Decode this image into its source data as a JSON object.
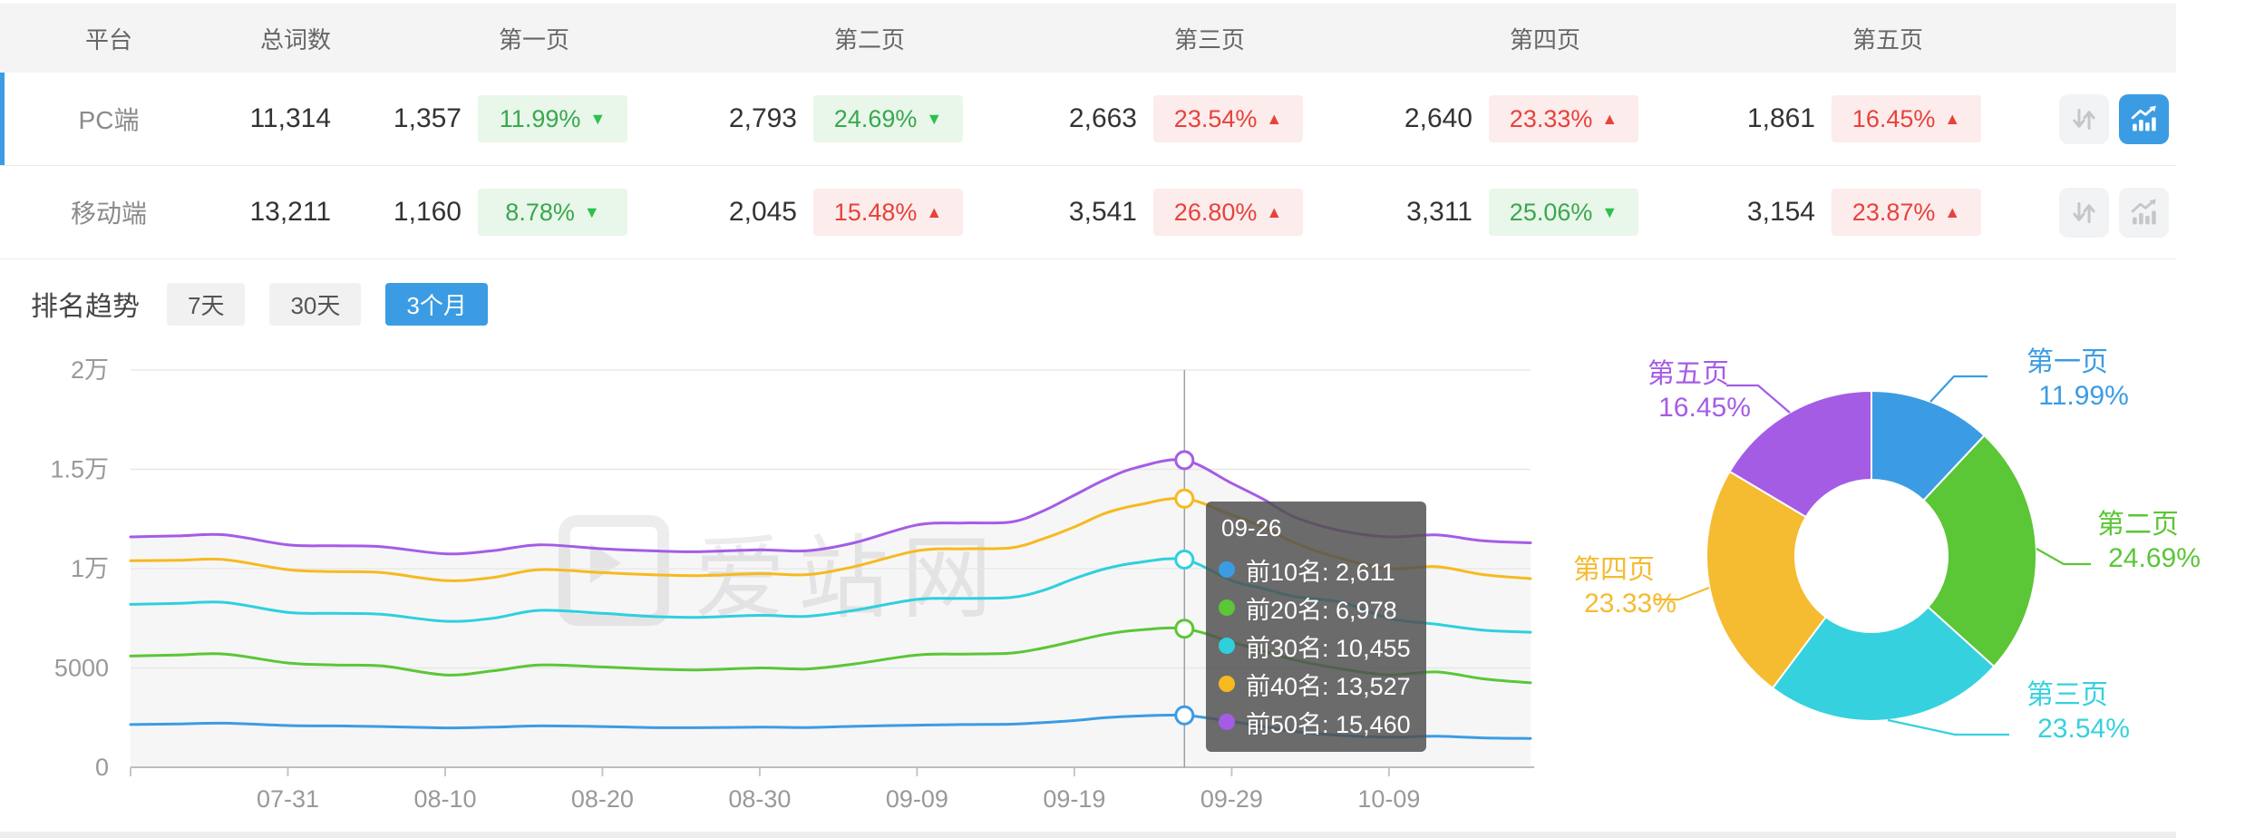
{
  "colors": {
    "accent_blue": "#3b9ce3",
    "badge_green_bg": "#e9f6ea",
    "badge_green_text": "#3aa74f",
    "badge_green_arrow": "#2ec04c",
    "badge_red_bg": "#fdecec",
    "badge_red_text": "#e6433b",
    "grid_line": "#e8e8e8",
    "axis_line": "#b9bdc3",
    "axis_label": "#999999",
    "tooltip_bg": "rgba(80,80,80,0.84)",
    "icon_inactive": "#c3c7cb",
    "icon_btn_gray_bg": "#f2f3f4"
  },
  "table": {
    "headers": {
      "platform": "平台",
      "total": "总词数",
      "pages": [
        "第一页",
        "第二页",
        "第三页",
        "第四页",
        "第五页"
      ]
    },
    "rows": [
      {
        "platform": "PC端",
        "total": "11,314",
        "selected": true,
        "chart_active": true,
        "pages": [
          {
            "count": "1,357",
            "pct": "11.99%",
            "dir": "down"
          },
          {
            "count": "2,793",
            "pct": "24.69%",
            "dir": "down"
          },
          {
            "count": "2,663",
            "pct": "23.54%",
            "dir": "up"
          },
          {
            "count": "2,640",
            "pct": "23.33%",
            "dir": "up"
          },
          {
            "count": "1,861",
            "pct": "16.45%",
            "dir": "up"
          }
        ]
      },
      {
        "platform": "移动端",
        "total": "13,211",
        "selected": false,
        "chart_active": false,
        "pages": [
          {
            "count": "1,160",
            "pct": "8.78%",
            "dir": "down"
          },
          {
            "count": "2,045",
            "pct": "15.48%",
            "dir": "up"
          },
          {
            "count": "3,541",
            "pct": "26.80%",
            "dir": "up"
          },
          {
            "count": "3,311",
            "pct": "25.06%",
            "dir": "down"
          },
          {
            "count": "3,154",
            "pct": "23.87%",
            "dir": "up"
          }
        ]
      }
    ]
  },
  "trend_bar": {
    "title": "排名趋势",
    "tabs": [
      "7天",
      "30天",
      "3个月"
    ],
    "active_tab": "3个月"
  },
  "tooltip": {
    "title": "09-26",
    "items": [
      {
        "name": "前10名",
        "value": "2,611",
        "color": "#3b9ce3"
      },
      {
        "name": "前20名",
        "value": "6,978",
        "color": "#5bc636"
      },
      {
        "name": "前30名",
        "value": "10,455",
        "color": "#2ed0dd"
      },
      {
        "name": "前40名",
        "value": "13,527",
        "color": "#f6ba1f"
      },
      {
        "name": "前50名",
        "value": "15,460",
        "color": "#a55ce5"
      }
    ]
  },
  "watermark": "爱站网",
  "chart_data": [
    {
      "type": "line",
      "title": "排名趋势（3个月）",
      "ylim": [
        0,
        20000
      ],
      "grid": true,
      "legend_position": "none",
      "y_ticks": [
        {
          "label": "0",
          "value": 0
        },
        {
          "label": "5000",
          "value": 5000
        },
        {
          "label": "1万",
          "value": 10000
        },
        {
          "label": "1.5万",
          "value": 15000
        },
        {
          "label": "2万",
          "value": 20000
        }
      ],
      "day_span": 89,
      "edge_tick_day": 0,
      "x_ticks": [
        {
          "label": "07-31",
          "day": 10
        },
        {
          "label": "08-10",
          "day": 20
        },
        {
          "label": "08-20",
          "day": 30
        },
        {
          "label": "08-30",
          "day": 40
        },
        {
          "label": "09-09",
          "day": 50
        },
        {
          "label": "09-19",
          "day": 60
        },
        {
          "label": "09-29",
          "day": 70
        },
        {
          "label": "10-09",
          "day": 80
        }
      ],
      "hover_day": 67,
      "hover_label": "09-26",
      "sample_days": [
        0,
        3,
        6,
        10,
        13,
        16,
        20,
        23,
        26,
        30,
        33,
        36,
        40,
        43,
        46,
        50,
        53,
        56,
        58,
        60,
        62,
        64,
        67,
        70,
        72,
        74,
        77,
        80,
        83,
        86,
        89
      ],
      "series": [
        {
          "name": "前10名",
          "color": "#3b9ce3",
          "values": [
            2150,
            2180,
            2220,
            2100,
            2080,
            2050,
            1980,
            2020,
            2080,
            2050,
            2000,
            1990,
            2020,
            2000,
            2060,
            2120,
            2150,
            2170,
            2250,
            2350,
            2500,
            2580,
            2611,
            2300,
            2050,
            1800,
            1600,
            1520,
            1560,
            1480,
            1450
          ]
        },
        {
          "name": "前20名",
          "color": "#5bc636",
          "values": [
            5600,
            5650,
            5700,
            5250,
            5150,
            5100,
            4650,
            4850,
            5150,
            5050,
            4950,
            4900,
            5000,
            4950,
            5200,
            5650,
            5700,
            5750,
            6000,
            6350,
            6700,
            6900,
            6978,
            6300,
            5850,
            5400,
            4950,
            4650,
            4800,
            4450,
            4250
          ]
        },
        {
          "name": "前30名",
          "color": "#2ed0dd",
          "values": [
            8200,
            8250,
            8300,
            7800,
            7750,
            7700,
            7350,
            7500,
            7900,
            7750,
            7600,
            7550,
            7650,
            7600,
            7900,
            8450,
            8500,
            8550,
            8900,
            9500,
            10000,
            10300,
            10455,
            9400,
            9000,
            8600,
            8300,
            7500,
            7200,
            6900,
            6800
          ]
        },
        {
          "name": "前40名",
          "color": "#f6ba1f",
          "values": [
            10400,
            10420,
            10450,
            9950,
            9850,
            9800,
            9400,
            9550,
            9950,
            9800,
            9700,
            9650,
            9750,
            9700,
            10100,
            10900,
            11000,
            11050,
            11500,
            12100,
            12800,
            13200,
            13527,
            12700,
            12100,
            11300,
            10500,
            10000,
            10100,
            9700,
            9500
          ]
        },
        {
          "name": "前50名",
          "color": "#a55ce5",
          "values": [
            11600,
            11650,
            11700,
            11200,
            11150,
            11100,
            10750,
            10900,
            11200,
            11000,
            10900,
            10850,
            10950,
            10900,
            11300,
            12200,
            12300,
            12350,
            12900,
            13700,
            14500,
            15100,
            15460,
            14300,
            13500,
            12600,
            11900,
            11600,
            11700,
            11400,
            11300
          ]
        }
      ]
    },
    {
      "type": "donut",
      "slices": [
        {
          "label": "第一页",
          "pct": 11.99,
          "display": "11.99%",
          "color": "#3b9ce3"
        },
        {
          "label": "第二页",
          "pct": 24.69,
          "display": "24.69%",
          "color": "#5bc636"
        },
        {
          "label": "第三页",
          "pct": 23.54,
          "display": "23.54%",
          "color": "#35d1de"
        },
        {
          "label": "第四页",
          "pct": 23.33,
          "display": "23.33%",
          "color": "#f5bb31"
        },
        {
          "label": "第五页",
          "pct": 16.45,
          "display": "16.45%",
          "color": "#a55ce5"
        }
      ]
    }
  ]
}
